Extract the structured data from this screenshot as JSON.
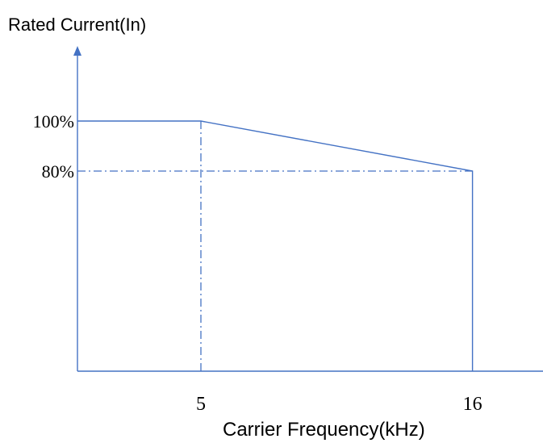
{
  "chart_data": {
    "type": "line",
    "ylabel": "Rated Current(In)",
    "xlabel": "Carrier Frequency(kHz)",
    "x_ticks": [
      "5",
      "16"
    ],
    "y_ticks": [
      "100%",
      "80%"
    ],
    "series": [
      {
        "x": [
          0,
          5,
          16,
          16
        ],
        "y": [
          100,
          100,
          80,
          0
        ]
      }
    ],
    "reference_lines": [
      {
        "orientation": "vertical",
        "x": 5,
        "style": "dash-dot"
      },
      {
        "orientation": "horizontal",
        "y": 80,
        "style": "dash-dot"
      }
    ],
    "grid": false,
    "colors": {
      "line": "#4472c4",
      "text": "#000000"
    }
  }
}
